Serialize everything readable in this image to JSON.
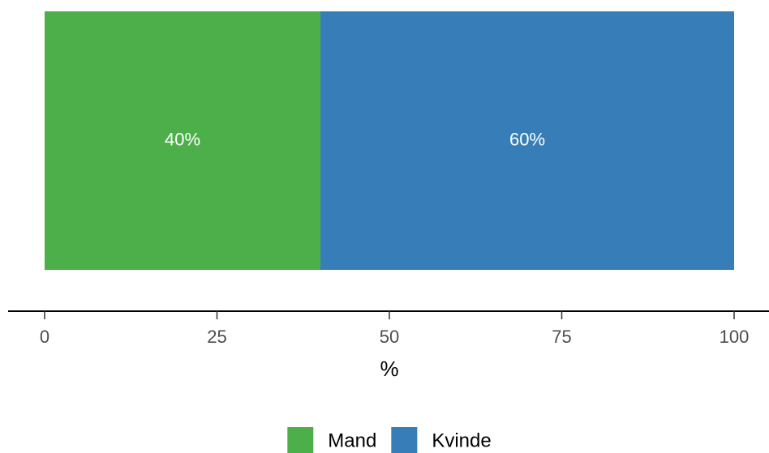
{
  "chart_data": {
    "type": "stacked_bar_horizontal",
    "categories": [
      null
    ],
    "series": [
      {
        "name": "Mand",
        "color": "#4daf4a",
        "values": [
          40
        ],
        "value_labels": [
          "40%"
        ]
      },
      {
        "name": "Kvinde",
        "color": "#377eb8",
        "values": [
          60
        ],
        "value_labels": [
          "60%"
        ]
      }
    ],
    "xlabel": "%",
    "xlim": [
      0,
      100
    ],
    "xticks": [
      0,
      25,
      50,
      75,
      100
    ],
    "legend": "bottom"
  }
}
